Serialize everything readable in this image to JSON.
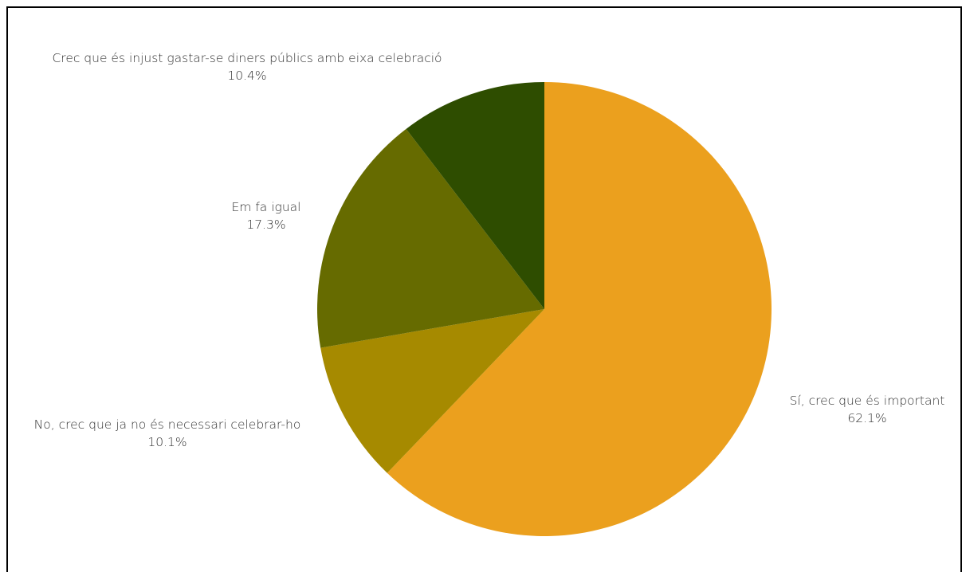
{
  "chart_data": {
    "type": "pie",
    "title": "",
    "start": "top",
    "direction": "clockwise",
    "slices": [
      {
        "label": "Sí, crec que és important",
        "value": 62.1,
        "value_label": "62.1%",
        "color": "#EBA01E"
      },
      {
        "label": "No, crec que ja no és necessari celebrar-ho",
        "value": 10.1,
        "value_label": "10.1%",
        "color": "#A68A00"
      },
      {
        "label": "Em fa igual",
        "value": 17.3,
        "value_label": "17.3%",
        "color": "#666B00"
      },
      {
        "label": "Crec que és injust gastar-se diners públics amb eixa celebració",
        "value": 10.4,
        "value_label": "10.4%",
        "color": "#2E4D00"
      }
    ]
  }
}
